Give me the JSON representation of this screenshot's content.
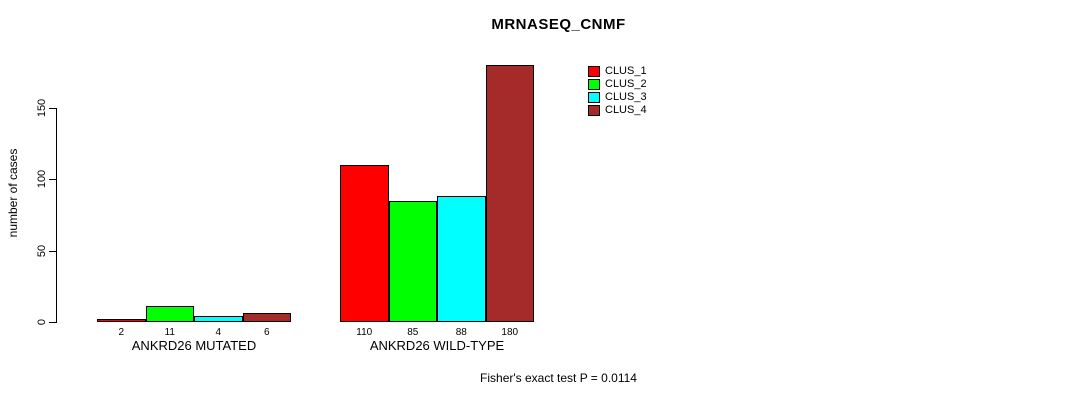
{
  "chart_data": {
    "type": "bar",
    "title": "MRNASEQ_CNMF",
    "ylabel": "number of cases",
    "xlabel": "",
    "yticks": [
      0,
      50,
      100,
      150
    ],
    "ylim": [
      0,
      185
    ],
    "grid": false,
    "legend_position": "inside-top-right",
    "categories": [
      "ANKRD26 MUTATED",
      "ANKRD26 WILD-TYPE"
    ],
    "series": [
      {
        "name": "CLUS_1",
        "color": "#FF0000",
        "values": [
          2,
          110
        ]
      },
      {
        "name": "CLUS_2",
        "color": "#00FF00",
        "values": [
          11,
          85
        ]
      },
      {
        "name": "CLUS_3",
        "color": "#00FFFF",
        "values": [
          4,
          88
        ]
      },
      {
        "name": "CLUS_4",
        "color": "#A52A2A",
        "values": [
          6,
          180
        ]
      }
    ],
    "bar_value_labels": true,
    "footnote": "Fisher's exact test P = 0.0114",
    "colors": {
      "axis": "#000000",
      "text": "#000000",
      "background": "#FFFFFF"
    }
  }
}
